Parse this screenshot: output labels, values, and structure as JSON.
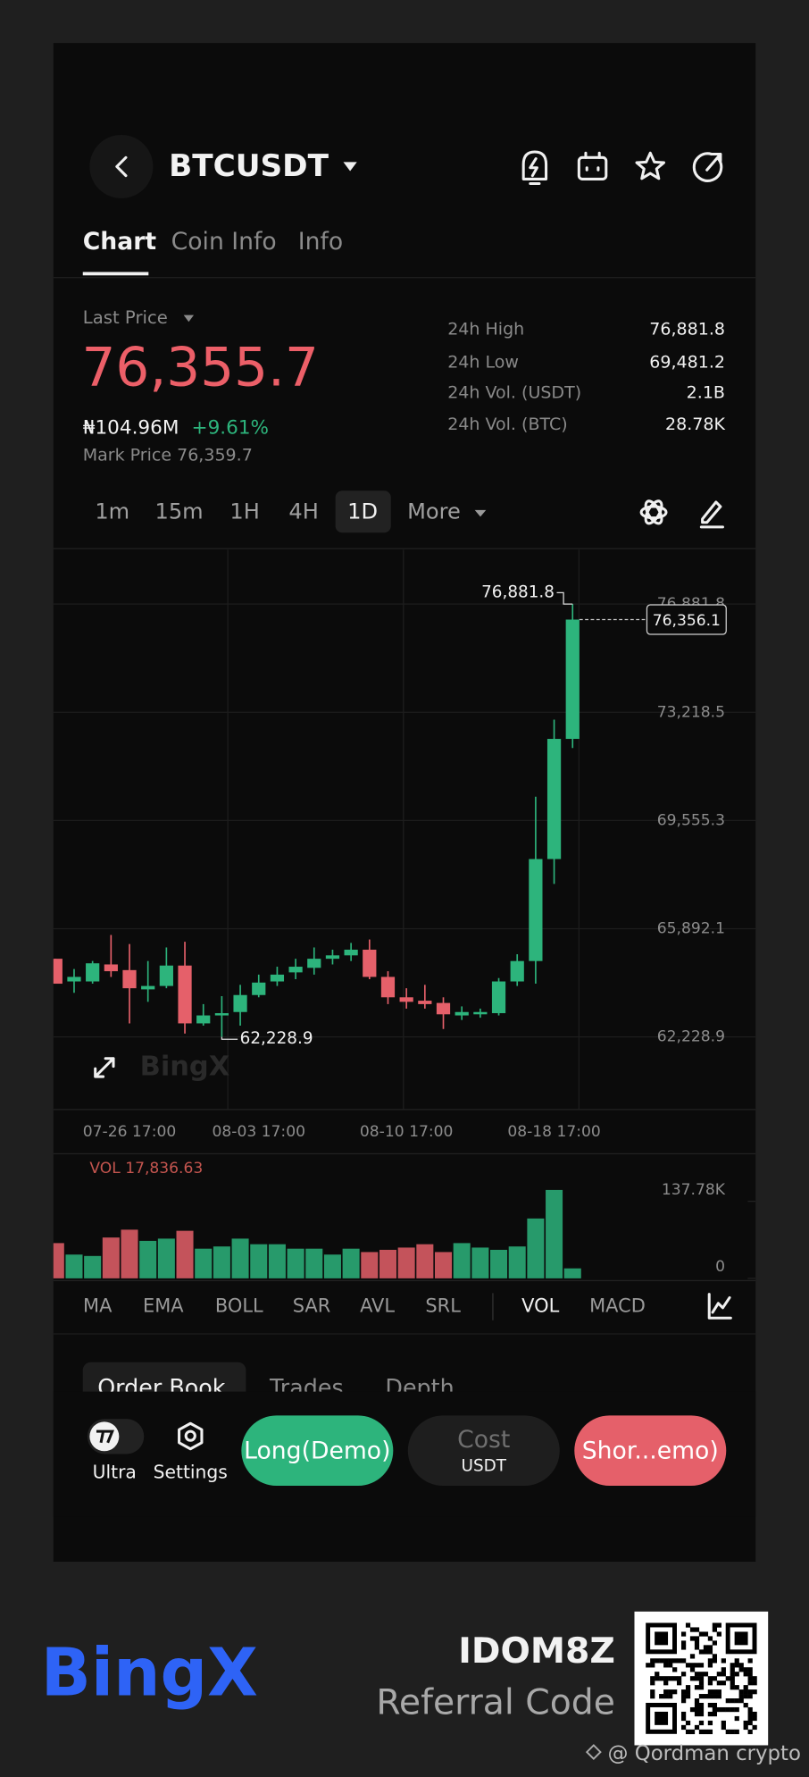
{
  "header": {
    "title": "BTCUSDT",
    "tabs": [
      "Chart",
      "Coin Info",
      "Info"
    ]
  },
  "price": {
    "label": "Last Price",
    "value": "76,355.7",
    "turnover": "₦104.96M",
    "change": "+9.61%",
    "mark_price": "Mark Price 76,359.7"
  },
  "stats": [
    {
      "label": "24h High",
      "value": "76,881.8"
    },
    {
      "label": "24h Low",
      "value": "69,481.2"
    },
    {
      "label": "24h Vol. (USDT)",
      "value": "2.1B"
    },
    {
      "label": "24h Vol. (BTC)",
      "value": "28.78K"
    }
  ],
  "intervals": [
    "1m",
    "15m",
    "1H",
    "4H",
    "1D",
    "More"
  ],
  "chart_data": {
    "type": "candlestick",
    "up_color": "#2db47c",
    "down_color": "#e5606a",
    "watermark": "BingX",
    "categories": [
      null,
      null,
      null,
      null,
      "07-26 17:00",
      null,
      null,
      null,
      null,
      null,
      null,
      "08-03 17:00",
      null,
      null,
      null,
      null,
      null,
      null,
      null,
      "08-10 17:00",
      null,
      null,
      null,
      null,
      null,
      null,
      null,
      "08-18 17:00",
      null
    ],
    "open": [
      64876,
      64108,
      64108,
      64684,
      64492,
      63840,
      63955,
      64646,
      62689,
      62958,
      63073,
      63648,
      64108,
      64415,
      64569,
      64876,
      64991,
      65183,
      64262,
      63571,
      63456,
      63380,
      62958,
      62996,
      63034,
      64108,
      64799,
      68251,
      72318
    ],
    "high": [
      64876,
      64530,
      64799,
      65681,
      65374,
      64799,
      65259,
      65451,
      63341,
      63610,
      63993,
      64339,
      64607,
      64876,
      65259,
      65183,
      65412,
      65528,
      64454,
      63878,
      63993,
      63571,
      63264,
      63188,
      64223,
      65029,
      70361,
      72970,
      76881.8
    ],
    "low": [
      64032,
      63725,
      64032,
      64262,
      62689,
      63418,
      63878,
      62344,
      62613,
      62228.9,
      62613,
      63571,
      63955,
      64185,
      64339,
      64684,
      64799,
      64185,
      63341,
      63188,
      63188,
      62497,
      62804,
      62881,
      62958,
      63955,
      64032,
      67407,
      72010
    ],
    "close": [
      64032,
      64262,
      64722,
      64454,
      63878,
      63955,
      64646,
      62689,
      62958,
      63034,
      63648,
      64070,
      64339,
      64607,
      64876,
      64991,
      65183,
      64262,
      63571,
      63418,
      63341,
      62996,
      63073,
      63073,
      64108,
      64799,
      68251,
      72318,
      76356.1
    ],
    "high_label": "76,881.8",
    "low_label": "62,228.9",
    "last_label": "76,356.1",
    "ylim": [
      59774,
      78723
    ],
    "yticks": [
      {
        "value": 62228.9,
        "label": "62,228.9"
      },
      {
        "value": 65892.1,
        "label": "65,892.1"
      },
      {
        "value": 69555.3,
        "label": "69,555.3"
      },
      {
        "value": 73218.5,
        "label": "73,218.5"
      },
      {
        "value": 76881.8,
        "label": "76,881.8"
      }
    ],
    "grid": true,
    "volume": {
      "label": "VOL 17,836.63",
      "values": [
        63000,
        42500,
        40000,
        73000,
        87000,
        67000,
        71000,
        85000,
        53000,
        57000,
        71000,
        61000,
        61000,
        53000,
        53000,
        42500,
        53000,
        47000,
        51000,
        55000,
        61000,
        47000,
        63000,
        55000,
        51000,
        57000,
        107000,
        158000,
        17836.63
      ],
      "ylim": [
        0,
        158000
      ],
      "yticks": [
        0,
        {
          "value": 137780,
          "label": "137.78K"
        }
      ]
    }
  },
  "indicators": [
    "MA",
    "EMA",
    "BOLL",
    "SAR",
    "AVL",
    "SRL",
    "VOL",
    "MACD"
  ],
  "book_tabs": [
    "Order Book",
    "Trades",
    "Depth"
  ],
  "actions": {
    "ultra": "Ultra",
    "settings": "Settings",
    "long": "Long(Demo)",
    "cost": "Cost",
    "cost_unit": "USDT",
    "short": "Shor...emo)"
  },
  "footer": {
    "brand": "BingX",
    "code": "IDOM8Z",
    "code_label": "Referral Code",
    "watermark": "@ Qordman crypto"
  }
}
